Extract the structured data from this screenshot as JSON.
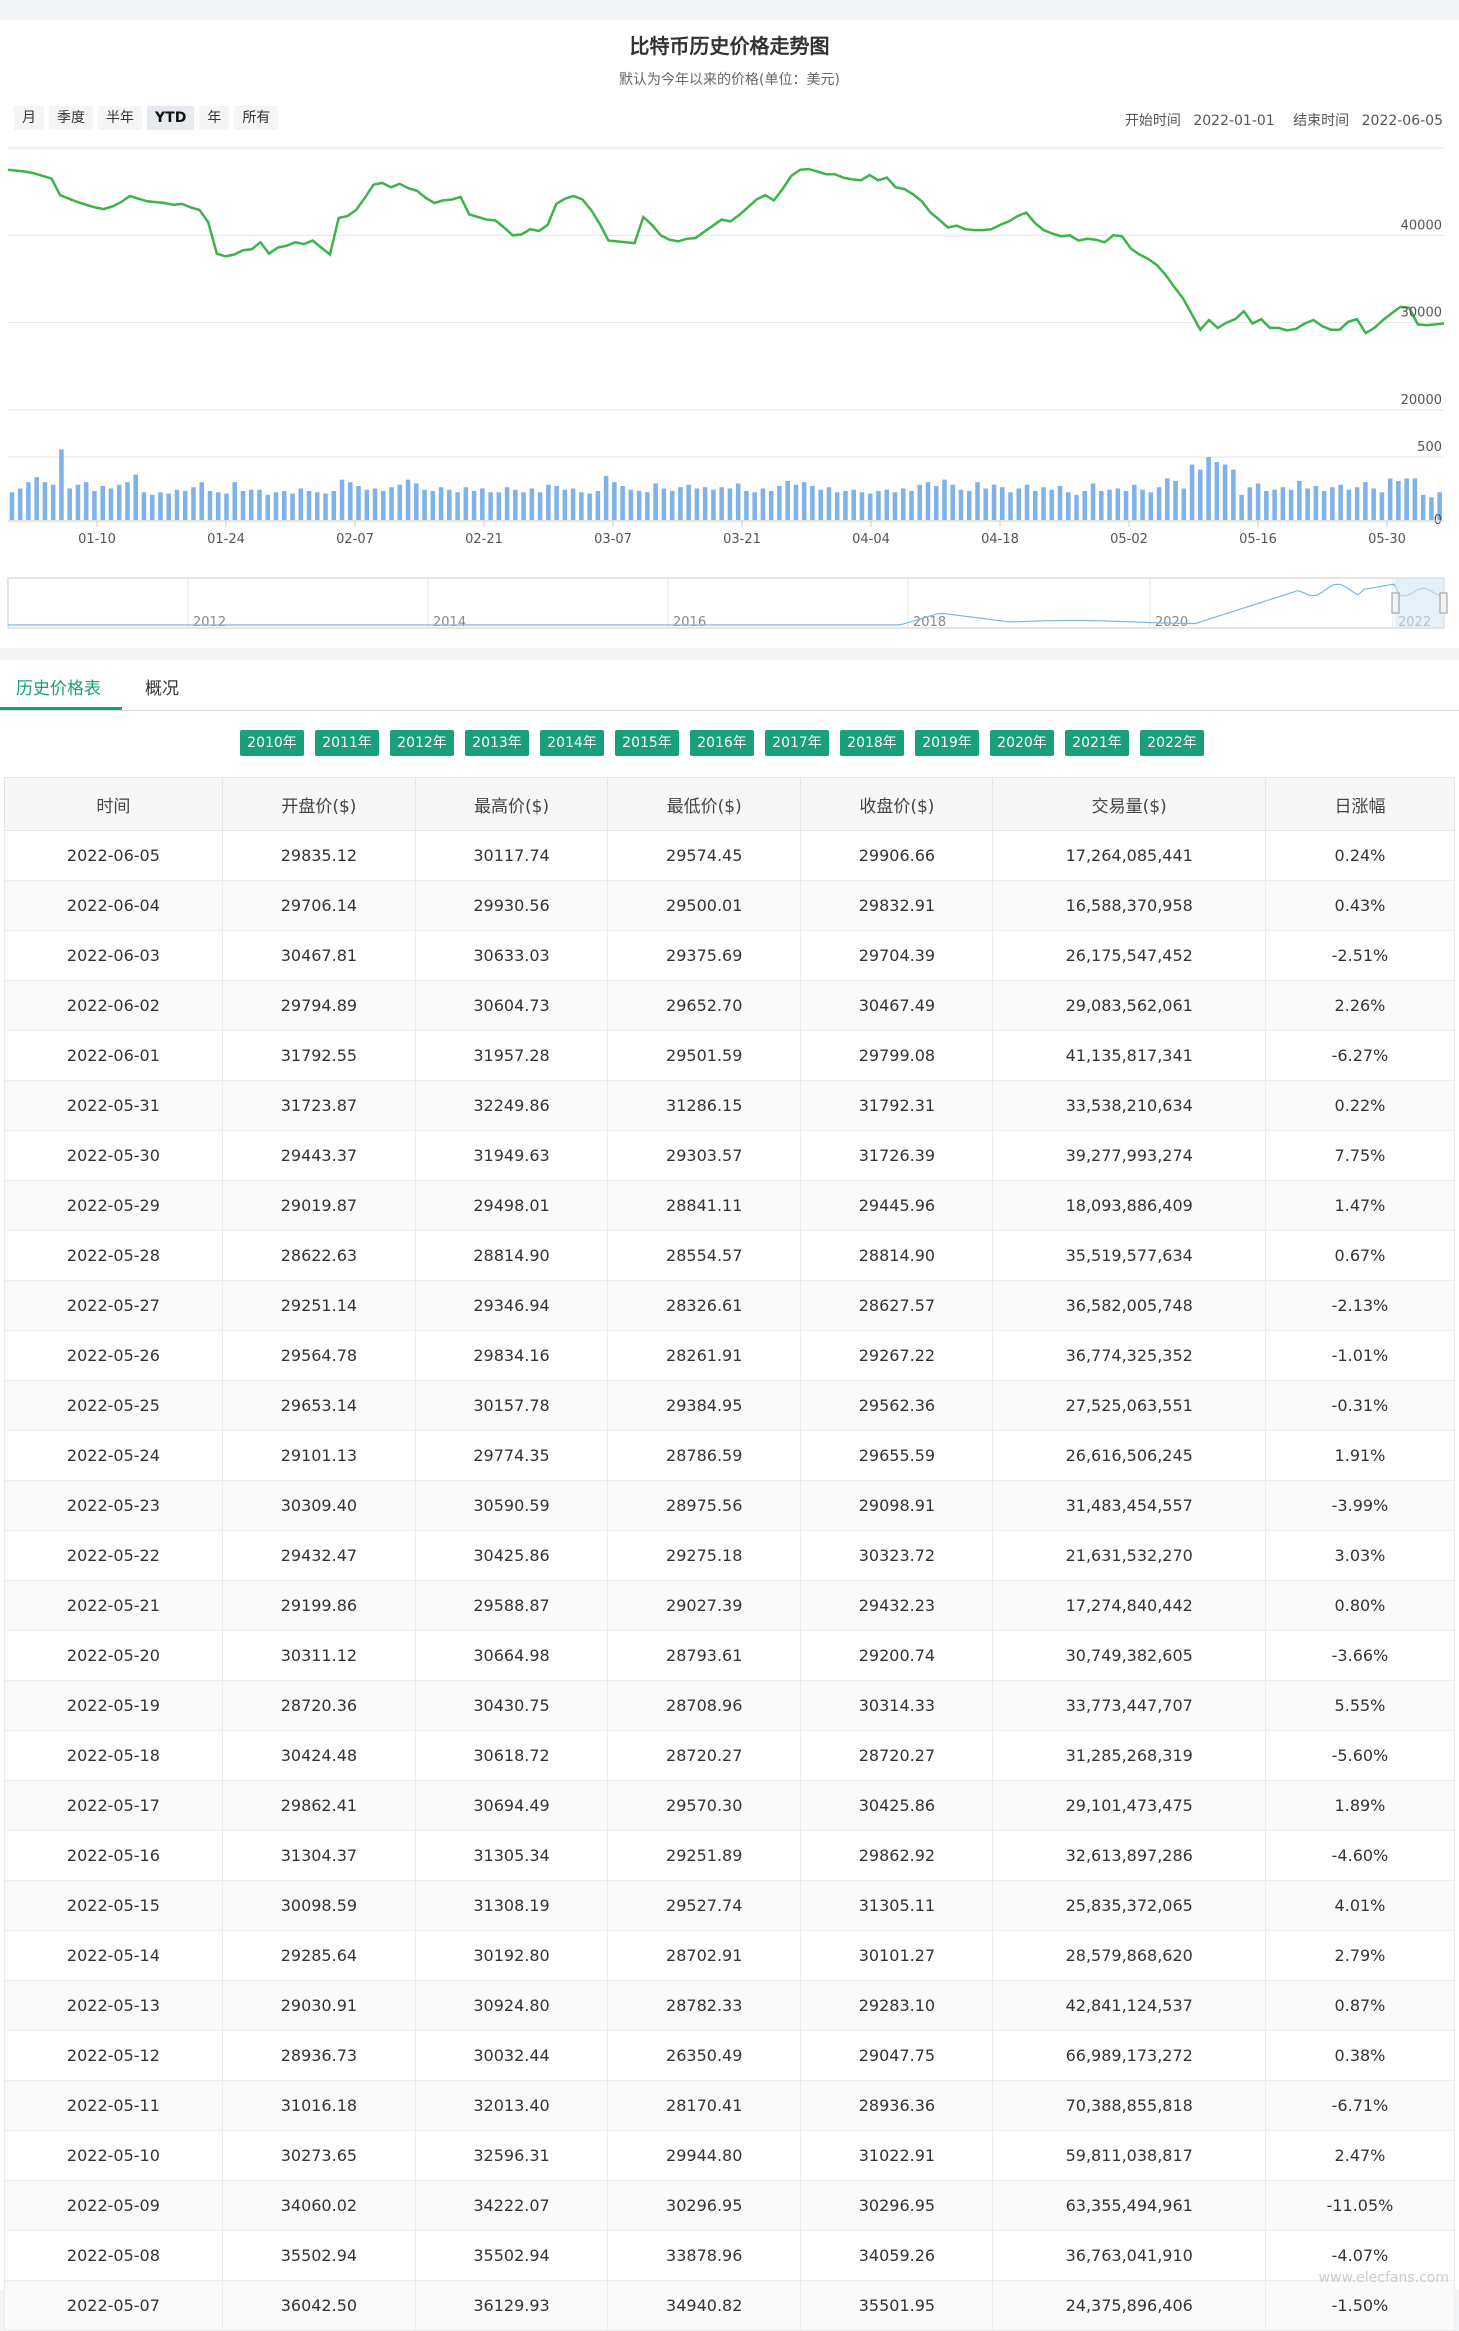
{
  "chart": {
    "title": "比特币历史价格走势图",
    "subtitle": "默认为今年以来的价格(单位：美元)",
    "range_buttons": [
      "月",
      "季度",
      "半年",
      "YTD",
      "年",
      "所有"
    ],
    "active_range": "YTD",
    "start_label": "开始时间",
    "start_value": "2022-01-01",
    "end_label": "结束时间",
    "end_value": "2022-06-05"
  },
  "chart_data": {
    "type": "line",
    "price_axis_ticks": [
      20000,
      30000,
      40000
    ],
    "price_range": [
      20000,
      50000
    ],
    "volume_axis_ticks": [
      0,
      500
    ],
    "volume_range": [
      0,
      1000
    ],
    "x_tick_labels": [
      "01-10",
      "01-24",
      "02-07",
      "02-21",
      "03-07",
      "03-21",
      "04-04",
      "04-18",
      "05-02",
      "05-16",
      "05-30"
    ],
    "navigator_labels": [
      "2012",
      "2014",
      "2016",
      "2018",
      "2020",
      "2022"
    ],
    "colors": {
      "price_line": "#3cb44b",
      "volume_bar": "#7fb2e6",
      "navigator_line": "#7ab8e0",
      "navigator_mask": "#d6e6f5"
    },
    "series": [
      {
        "values": [
          47500,
          47400,
          47300,
          47100,
          46800,
          46500,
          44600,
          44200,
          43800,
          43500,
          43200,
          43000,
          43300,
          43800,
          44500,
          44200,
          43900,
          43800,
          43700,
          43500,
          43600,
          43200,
          42900,
          41500,
          37900,
          37600,
          37800,
          38300,
          38400,
          39200,
          37900,
          38600,
          38800,
          39200,
          39000,
          39400,
          38600,
          37800,
          42000,
          42200,
          42900,
          44300,
          45800,
          46000,
          45500,
          45900,
          45400,
          45100,
          44300,
          43700,
          44000,
          44100,
          44400,
          42400,
          42100,
          41800,
          41700,
          40900,
          40000,
          40100,
          40700,
          40500,
          41200,
          43600,
          44200,
          44500,
          44100,
          42900,
          41300,
          39400,
          39300,
          39200,
          39100,
          42100,
          41200,
          40000,
          39500,
          39300,
          39600,
          39700,
          40400,
          41100,
          41800,
          41600,
          42300,
          43200,
          44100,
          44600,
          44000,
          45300,
          46800,
          47500,
          47600,
          47300,
          47000,
          47000,
          46600,
          46400,
          46300,
          46900,
          46300,
          46600,
          45500,
          45300,
          44700,
          43900,
          42600,
          41800,
          40900,
          41100,
          40700,
          40600,
          40600,
          40700,
          41200,
          41600,
          42200,
          42600,
          41400,
          40600,
          40200,
          39900,
          40000,
          39400,
          39600,
          39500,
          39200,
          40000,
          39900,
          38500,
          37800,
          37300,
          36600,
          35500,
          34100,
          32800,
          31000,
          29200,
          30300,
          29400,
          30000,
          30400,
          31300,
          29900,
          30400,
          29400,
          29400,
          29100,
          29300,
          29900,
          30300,
          29600,
          29200,
          29200,
          30100,
          30400,
          28800,
          29400,
          30300,
          31100,
          31800,
          31700,
          29800,
          29700,
          29800,
          29900
        ]
      }
    ],
    "volume": [
      220,
      250,
      300,
      340,
      300,
      280,
      560,
      250,
      280,
      300,
      230,
      270,
      250,
      280,
      300,
      360,
      220,
      200,
      220,
      210,
      240,
      230,
      260,
      300,
      230,
      220,
      210,
      300,
      230,
      240,
      240,
      200,
      220,
      230,
      210,
      250,
      230,
      220,
      210,
      230,
      320,
      300,
      270,
      240,
      250,
      230,
      260,
      280,
      320,
      290,
      240,
      230,
      260,
      240,
      220,
      260,
      230,
      250,
      220,
      220,
      260,
      240,
      220,
      250,
      220,
      280,
      270,
      240,
      250,
      220,
      210,
      230,
      350,
      300,
      270,
      240,
      230,
      220,
      290,
      250,
      230,
      260,
      280,
      250,
      260,
      240,
      260,
      250,
      290,
      230,
      220,
      250,
      230,
      270,
      310,
      280,
      300,
      270,
      240,
      260,
      220,
      230,
      240,
      220,
      210,
      230,
      240,
      220,
      250,
      230,
      280,
      300,
      270,
      320,
      280,
      240,
      230,
      300,
      250,
      280,
      260,
      220,
      250,
      280,
      230,
      260,
      240,
      270,
      220,
      200,
      230,
      290,
      230,
      240,
      250,
      230,
      280,
      240,
      220,
      260,
      330,
      310,
      250,
      440,
      400,
      500,
      460,
      440,
      400,
      200,
      260,
      290,
      230,
      240,
      260,
      240,
      310,
      250,
      270,
      230,
      260,
      280,
      240,
      260,
      300,
      250,
      220,
      330,
      310,
      330,
      330,
      200,
      180,
      220
    ]
  },
  "tabs": [
    "历史价格表",
    "概况"
  ],
  "years": [
    "2010年",
    "2011年",
    "2012年",
    "2013年",
    "2014年",
    "2015年",
    "2016年",
    "2017年",
    "2018年",
    "2019年",
    "2020年",
    "2021年",
    "2022年"
  ],
  "table": {
    "headers": [
      "时间",
      "开盘价($)",
      "最高价($)",
      "最低价($)",
      "收盘价($)",
      "交易量($)",
      "日涨幅"
    ],
    "rows": [
      [
        "2022-06-05",
        "29835.12",
        "30117.74",
        "29574.45",
        "29906.66",
        "17,264,085,441",
        "0.24%"
      ],
      [
        "2022-06-04",
        "29706.14",
        "29930.56",
        "29500.01",
        "29832.91",
        "16,588,370,958",
        "0.43%"
      ],
      [
        "2022-06-03",
        "30467.81",
        "30633.03",
        "29375.69",
        "29704.39",
        "26,175,547,452",
        "-2.51%"
      ],
      [
        "2022-06-02",
        "29794.89",
        "30604.73",
        "29652.70",
        "30467.49",
        "29,083,562,061",
        "2.26%"
      ],
      [
        "2022-06-01",
        "31792.55",
        "31957.28",
        "29501.59",
        "29799.08",
        "41,135,817,341",
        "-6.27%"
      ],
      [
        "2022-05-31",
        "31723.87",
        "32249.86",
        "31286.15",
        "31792.31",
        "33,538,210,634",
        "0.22%"
      ],
      [
        "2022-05-30",
        "29443.37",
        "31949.63",
        "29303.57",
        "31726.39",
        "39,277,993,274",
        "7.75%"
      ],
      [
        "2022-05-29",
        "29019.87",
        "29498.01",
        "28841.11",
        "29445.96",
        "18,093,886,409",
        "1.47%"
      ],
      [
        "2022-05-28",
        "28622.63",
        "28814.90",
        "28554.57",
        "28814.90",
        "35,519,577,634",
        "0.67%"
      ],
      [
        "2022-05-27",
        "29251.14",
        "29346.94",
        "28326.61",
        "28627.57",
        "36,582,005,748",
        "-2.13%"
      ],
      [
        "2022-05-26",
        "29564.78",
        "29834.16",
        "28261.91",
        "29267.22",
        "36,774,325,352",
        "-1.01%"
      ],
      [
        "2022-05-25",
        "29653.14",
        "30157.78",
        "29384.95",
        "29562.36",
        "27,525,063,551",
        "-0.31%"
      ],
      [
        "2022-05-24",
        "29101.13",
        "29774.35",
        "28786.59",
        "29655.59",
        "26,616,506,245",
        "1.91%"
      ],
      [
        "2022-05-23",
        "30309.40",
        "30590.59",
        "28975.56",
        "29098.91",
        "31,483,454,557",
        "-3.99%"
      ],
      [
        "2022-05-22",
        "29432.47",
        "30425.86",
        "29275.18",
        "30323.72",
        "21,631,532,270",
        "3.03%"
      ],
      [
        "2022-05-21",
        "29199.86",
        "29588.87",
        "29027.39",
        "29432.23",
        "17,274,840,442",
        "0.80%"
      ],
      [
        "2022-05-20",
        "30311.12",
        "30664.98",
        "28793.61",
        "29200.74",
        "30,749,382,605",
        "-3.66%"
      ],
      [
        "2022-05-19",
        "28720.36",
        "30430.75",
        "28708.96",
        "30314.33",
        "33,773,447,707",
        "5.55%"
      ],
      [
        "2022-05-18",
        "30424.48",
        "30618.72",
        "28720.27",
        "28720.27",
        "31,285,268,319",
        "-5.60%"
      ],
      [
        "2022-05-17",
        "29862.41",
        "30694.49",
        "29570.30",
        "30425.86",
        "29,101,473,475",
        "1.89%"
      ],
      [
        "2022-05-16",
        "31304.37",
        "31305.34",
        "29251.89",
        "29862.92",
        "32,613,897,286",
        "-4.60%"
      ],
      [
        "2022-05-15",
        "30098.59",
        "31308.19",
        "29527.74",
        "31305.11",
        "25,835,372,065",
        "4.01%"
      ],
      [
        "2022-05-14",
        "29285.64",
        "30192.80",
        "28702.91",
        "30101.27",
        "28,579,868,620",
        "2.79%"
      ],
      [
        "2022-05-13",
        "29030.91",
        "30924.80",
        "28782.33",
        "29283.10",
        "42,841,124,537",
        "0.87%"
      ],
      [
        "2022-05-12",
        "28936.73",
        "30032.44",
        "26350.49",
        "29047.75",
        "66,989,173,272",
        "0.38%"
      ],
      [
        "2022-05-11",
        "31016.18",
        "32013.40",
        "28170.41",
        "28936.36",
        "70,388,855,818",
        "-6.71%"
      ],
      [
        "2022-05-10",
        "30273.65",
        "32596.31",
        "29944.80",
        "31022.91",
        "59,811,038,817",
        "2.47%"
      ],
      [
        "2022-05-09",
        "34060.02",
        "34222.07",
        "30296.95",
        "30296.95",
        "63,355,494,961",
        "-11.05%"
      ],
      [
        "2022-05-08",
        "35502.94",
        "35502.94",
        "33878.96",
        "34059.26",
        "36,763,041,910",
        "-4.07%"
      ],
      [
        "2022-05-07",
        "36042.50",
        "36129.93",
        "34940.82",
        "35501.95",
        "24,375,896,406",
        "-1.50%"
      ]
    ]
  },
  "watermark": "www.elecfans.com"
}
